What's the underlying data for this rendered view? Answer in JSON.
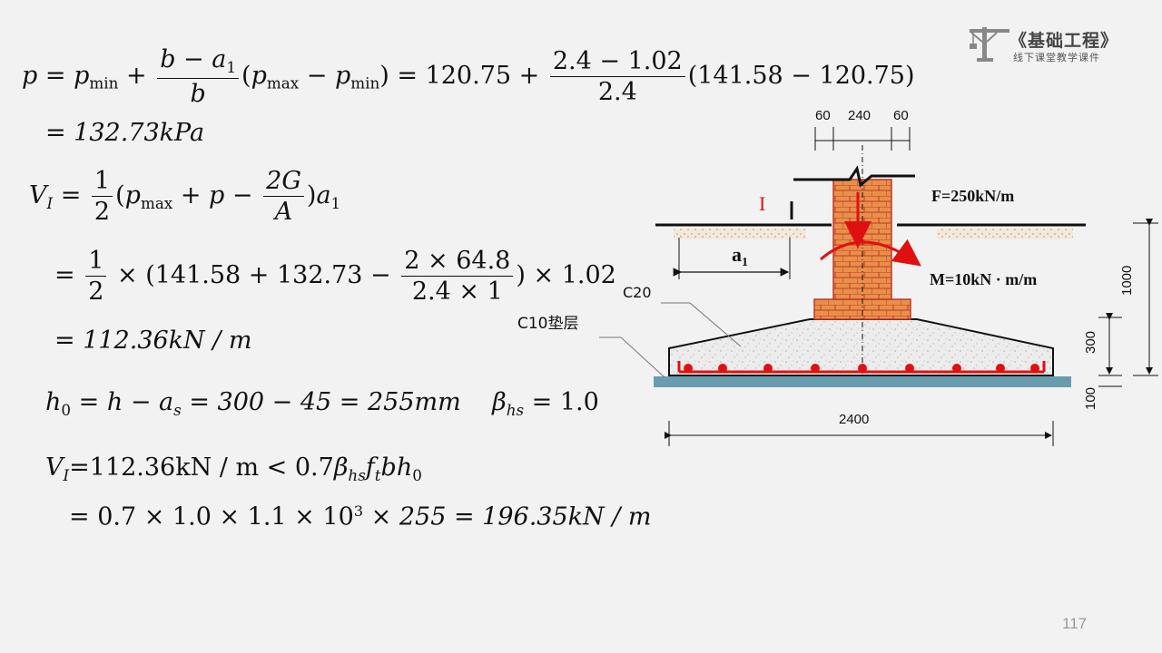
{
  "logo": {
    "title": "《基础工程》",
    "subtitle": "线下课堂教学课件"
  },
  "page_number": "117",
  "equations": {
    "eq1_p": "p",
    "eq1_pmin": "p",
    "eq1_min": "min",
    "eq1_num": "b − a",
    "eq1_num_sub": "1",
    "eq1_den": "b",
    "eq1_pmax": "p",
    "eq1_max": "max",
    "eq1_min2": "min",
    "eq1_val1": "120.75",
    "eq1_frac_num": "2.4 − 1.02",
    "eq1_frac_den": "2.4",
    "eq1_paren": "(141.58 − 120.75)",
    "eq2_result": "= 132.73kPa",
    "eq3_V": "V",
    "eq3_I": "I",
    "eq3_half_num": "1",
    "eq3_half_den": "2",
    "eq3_G_num": "2G",
    "eq3_A_den": "A",
    "eq4_lead": "(141.58 + 132.73 −",
    "eq4_fr_num": "2 × 64.8",
    "eq4_fr_den": "2.4 × 1",
    "eq4_tail": ") × 1.02",
    "eq5_result": "= 112.36kN / m",
    "eq6_h0": "h",
    "eq6_rest": "= h − a",
    "eq6_val": "= 300 − 45 = 255mm",
    "eq6_beta": "β",
    "eq6_hs": "hs",
    "eq6_beta_val": "= 1.0",
    "eq7_lhs": "=112.36kN / m < 0.7",
    "eq7_hs": "hs",
    "eq7_ft": "f",
    "eq7_t": "t",
    "eq7_bh": "bh",
    "eq7_0": "0",
    "eq8": "= 0.7 × 1.0 × 1.1 × 10",
    "eq8_exp": "3",
    "eq8_tail": "× 255 = 196.35kN / m"
  },
  "diagram": {
    "dim_top_left": "60",
    "dim_top_mid": "240",
    "dim_top_right": "60",
    "section_label": "I",
    "force_label": "F=250kN/m",
    "moment_label": "M=10kN · m/m",
    "a1_label": "a",
    "a1_sub": "1",
    "concrete_label": "C20",
    "cushion_label": "C10垫层",
    "dim_1000": "1000",
    "dim_300": "300",
    "dim_100": "100",
    "dim_2400": "2400",
    "colors": {
      "brick": "#e8904a",
      "brick_edge": "#c0392b",
      "rebar": "#e01010",
      "cushion": "#6a9cb0"
    }
  }
}
